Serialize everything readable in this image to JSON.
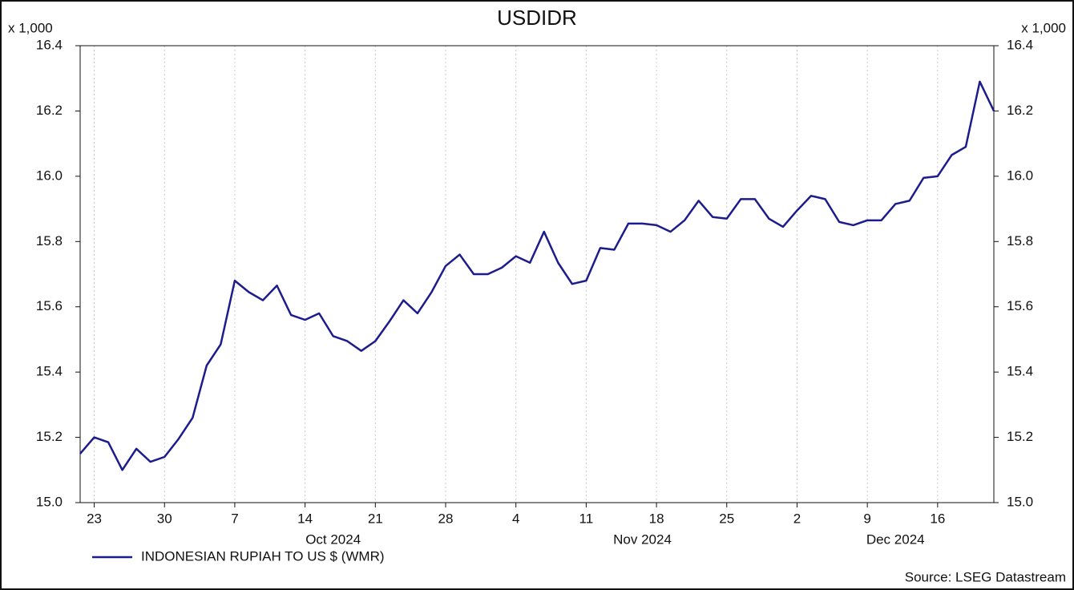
{
  "chart_data": {
    "type": "line",
    "title": "USDIDR",
    "y_unit": "x 1,000",
    "y2_unit": "x 1,000",
    "x": [
      "2024-09-20",
      "2024-09-23",
      "2024-09-24",
      "2024-09-25",
      "2024-09-26",
      "2024-09-27",
      "2024-09-30",
      "2024-10-01",
      "2024-10-02",
      "2024-10-03",
      "2024-10-04",
      "2024-10-07",
      "2024-10-08",
      "2024-10-09",
      "2024-10-10",
      "2024-10-11",
      "2024-10-14",
      "2024-10-15",
      "2024-10-16",
      "2024-10-17",
      "2024-10-18",
      "2024-10-21",
      "2024-10-22",
      "2024-10-23",
      "2024-10-24",
      "2024-10-25",
      "2024-10-28",
      "2024-10-29",
      "2024-10-30",
      "2024-10-31",
      "2024-11-01",
      "2024-11-04",
      "2024-11-05",
      "2024-11-06",
      "2024-11-07",
      "2024-11-08",
      "2024-11-11",
      "2024-11-12",
      "2024-11-13",
      "2024-11-14",
      "2024-11-15",
      "2024-11-18",
      "2024-11-19",
      "2024-11-20",
      "2024-11-21",
      "2024-11-22",
      "2024-11-25",
      "2024-11-26",
      "2024-11-27",
      "2024-11-28",
      "2024-11-29",
      "2024-12-02",
      "2024-12-03",
      "2024-12-04",
      "2024-12-05",
      "2024-12-06",
      "2024-12-09",
      "2024-12-10",
      "2024-12-11",
      "2024-12-12",
      "2024-12-13",
      "2024-12-16",
      "2024-12-17",
      "2024-12-18",
      "2024-12-19",
      "2024-12-20"
    ],
    "series": [
      {
        "name": "INDONESIAN RUPIAH TO US $ (WMR)",
        "color": "#1c1c8c",
        "values": [
          15.15,
          15.2,
          15.185,
          15.1,
          15.165,
          15.125,
          15.14,
          15.195,
          15.26,
          15.42,
          15.485,
          15.68,
          15.645,
          15.62,
          15.665,
          15.575,
          15.56,
          15.58,
          15.51,
          15.495,
          15.465,
          15.495,
          15.555,
          15.62,
          15.58,
          15.645,
          15.725,
          15.76,
          15.7,
          15.7,
          15.72,
          15.755,
          15.735,
          15.83,
          15.735,
          15.67,
          15.68,
          15.78,
          15.775,
          15.855,
          15.855,
          15.85,
          15.83,
          15.865,
          15.925,
          15.875,
          15.87,
          15.93,
          15.93,
          15.87,
          15.845,
          15.895,
          15.94,
          15.93,
          15.86,
          15.85,
          15.865,
          15.865,
          15.915,
          15.925,
          15.995,
          16.0,
          16.065,
          16.09,
          16.29,
          16.2
        ]
      }
    ],
    "ylim": [
      15.0,
      16.4
    ],
    "yticks": [
      {
        "value": 15,
        "label": "15.0"
      },
      {
        "value": 15.2,
        "label": "15.2"
      },
      {
        "value": 15.4,
        "label": "15.4"
      },
      {
        "value": 15.6,
        "label": "15.6"
      },
      {
        "value": 15.8,
        "label": "15.8"
      },
      {
        "value": 16,
        "label": "16.0"
      },
      {
        "value": 16.2,
        "label": "16.2"
      },
      {
        "value": 16.4,
        "label": "16.4"
      }
    ],
    "y2lim": [
      15.0,
      16.4
    ],
    "y2ticks": [
      {
        "value": 15,
        "label": "15.0"
      },
      {
        "value": 15.2,
        "label": "15.2"
      },
      {
        "value": 15.4,
        "label": "15.4"
      },
      {
        "value": 15.6,
        "label": "15.6"
      },
      {
        "value": 15.8,
        "label": "15.8"
      },
      {
        "value": 16,
        "label": "16.0"
      },
      {
        "value": 16.2,
        "label": "16.2"
      },
      {
        "value": 16.4,
        "label": "16.4"
      }
    ],
    "xticks": [
      {
        "value": "2024-09-23",
        "label": "23"
      },
      {
        "value": "2024-09-30",
        "label": "30"
      },
      {
        "value": "2024-10-07",
        "label": "7"
      },
      {
        "value": "2024-10-14",
        "label": "14"
      },
      {
        "value": "2024-10-21",
        "label": "21"
      },
      {
        "value": "2024-10-28",
        "label": "28"
      },
      {
        "value": "2024-11-04",
        "label": "4"
      },
      {
        "value": "2024-11-11",
        "label": "11"
      },
      {
        "value": "2024-11-18",
        "label": "18"
      },
      {
        "value": "2024-11-25",
        "label": "25"
      },
      {
        "value": "2024-12-02",
        "label": "2"
      },
      {
        "value": "2024-12-09",
        "label": "9"
      },
      {
        "value": "2024-12-16",
        "label": "16"
      }
    ],
    "month_labels": [
      "Oct 2024",
      "Nov 2024",
      "Dec 2024"
    ],
    "grid": true,
    "source": "Source: LSEG Datastream"
  }
}
